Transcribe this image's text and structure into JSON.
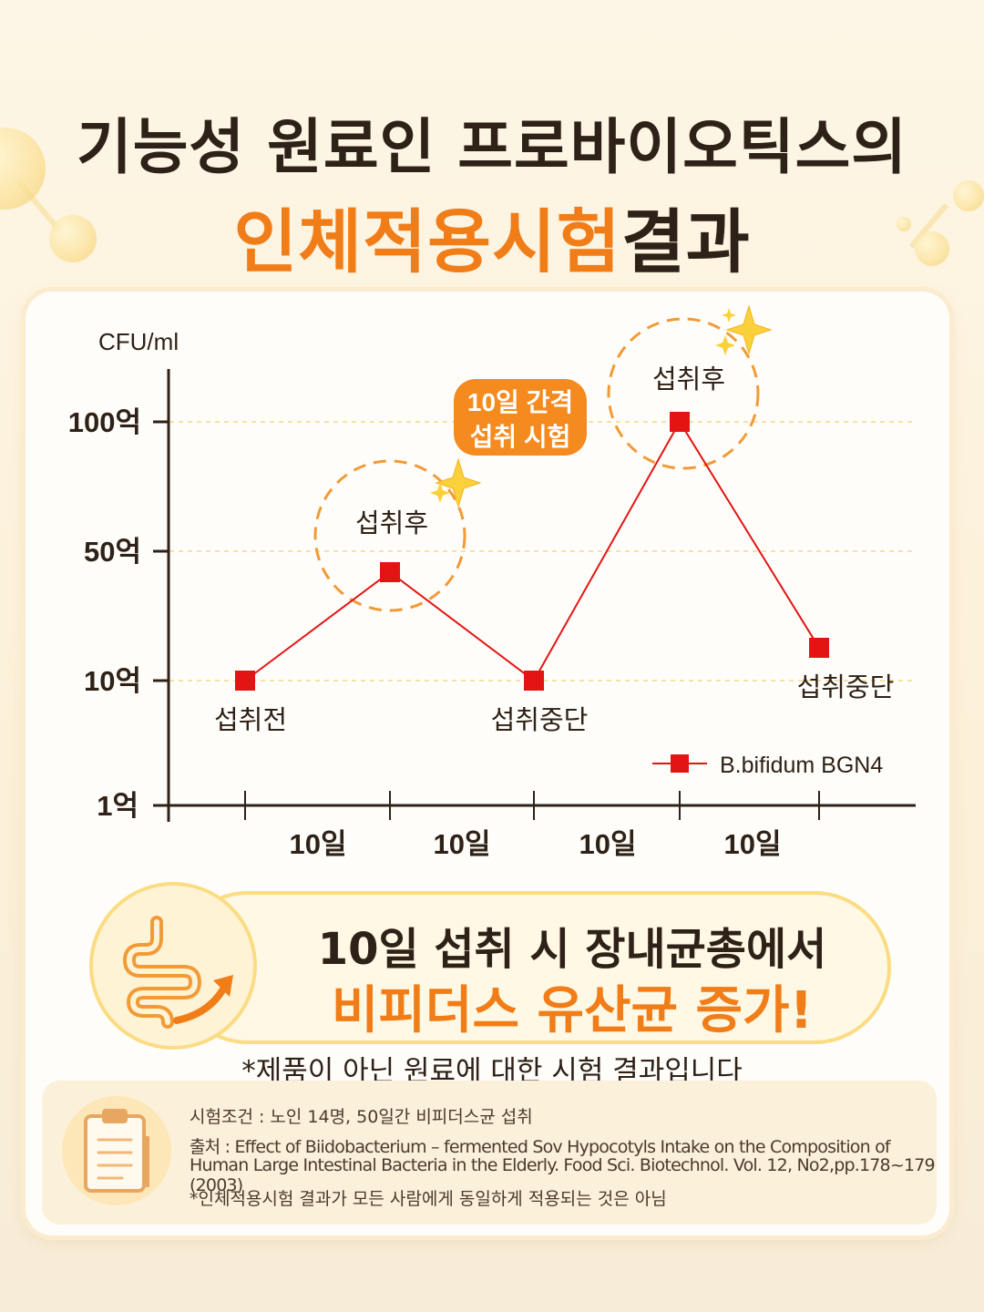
{
  "title": {
    "line1": "기능성 원료인 프로바이오틱스의",
    "line2_accent": "인체적용시험",
    "line2_rest": "결과"
  },
  "colors": {
    "accent_orange": "#f07d18",
    "series_red": "#e31414",
    "dark_text": "#2e2117",
    "circle_dash": "#f29a36"
  },
  "chart_data": {
    "type": "line",
    "ylabel": "CFU/ml",
    "y_ticks": [
      "100억",
      "50억",
      "10억",
      "1억"
    ],
    "x_interval_labels": [
      "10일",
      "10일",
      "10일",
      "10일"
    ],
    "series": [
      {
        "name": "B.bifidum BGN4",
        "x": [
          0,
          10,
          20,
          30,
          40
        ],
        "values": [
          "10억",
          "약 40억",
          "10억",
          "100억",
          "약 20억"
        ],
        "point_labels": [
          "섭취전",
          "섭취후",
          "섭취중단",
          "섭취후",
          "섭취중단"
        ]
      }
    ],
    "annotation": "10일 간격 섭취 시험",
    "grid": "dashed horizontal",
    "legend": "bottom-right"
  },
  "summary": {
    "icon": "intestine-up-arrow-icon",
    "line1": "10일 섭취 시 장내균총에서",
    "line2": "비피더스 유산균 증가!"
  },
  "disclaimer": "*제품이 아닌 원료에 대한 시험 결과입니다",
  "source": {
    "icon": "clipboard-icon",
    "condition": "시험조건 : 노인 14명, 50일간 비피더스균 섭취",
    "citation_line1": "출처 : Effect of Biidobacterium – fermented Sov Hypocotyls Intake on the Composition of",
    "citation_line2": "Human Large Intestinal Bacteria in the Elderly. Food Sci. Biotechnol. Vol. 12, No2,pp.178~179 (2003)",
    "note": "*인체적용시험 결과가 모든 사람에게 동일하게 적용되는 것은 아님"
  }
}
